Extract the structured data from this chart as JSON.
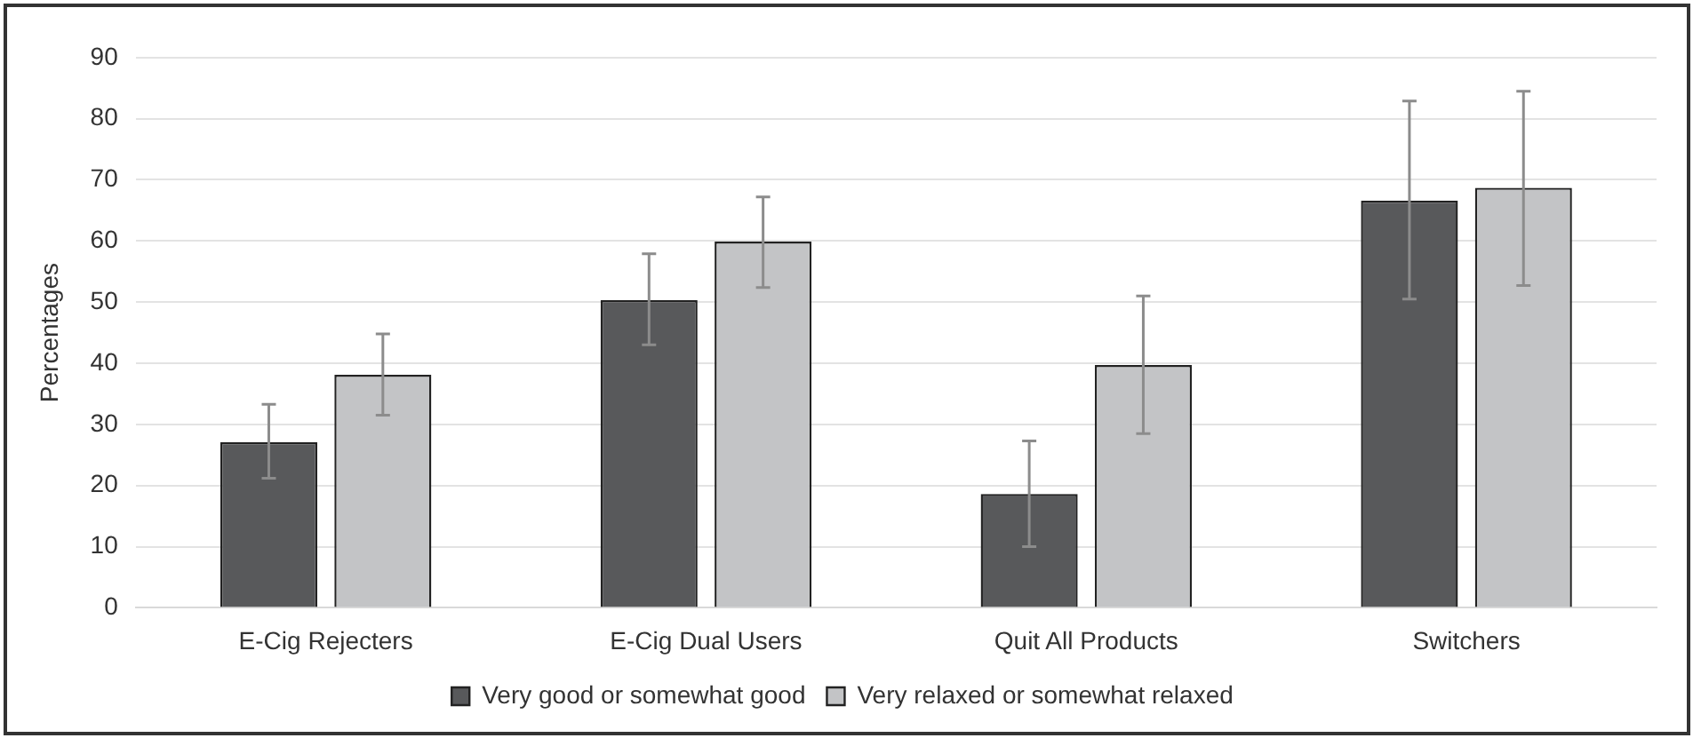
{
  "chart_data": {
    "type": "bar",
    "ylabel": "Percentages",
    "categories": [
      "E-Cig Rejecters",
      "E-Cig Dual Users",
      "Quit All Products",
      "Switchers"
    ],
    "series": [
      {
        "name": "Very good or somewhat good",
        "color": "#58595b",
        "values": [
          27.1,
          50.3,
          18.6,
          66.6
        ],
        "errors": [
          [
            21.2,
            33.3
          ],
          [
            43.0,
            57.9
          ],
          [
            10.0,
            27.3
          ],
          [
            50.5,
            82.9
          ]
        ]
      },
      {
        "name": "Very relaxed or somewhat relaxed",
        "color": "#c3c4c6",
        "values": [
          38.1,
          59.9,
          39.7,
          68.7
        ],
        "errors": [
          [
            31.5,
            44.8
          ],
          [
            52.4,
            67.2
          ],
          [
            28.5,
            51.0
          ],
          [
            52.7,
            84.5
          ]
        ]
      }
    ],
    "ylim": [
      0,
      90
    ],
    "yticks": [
      0,
      10,
      20,
      30,
      40,
      50,
      60,
      70,
      80,
      90
    ],
    "grid": "y",
    "legend": "bottom"
  }
}
